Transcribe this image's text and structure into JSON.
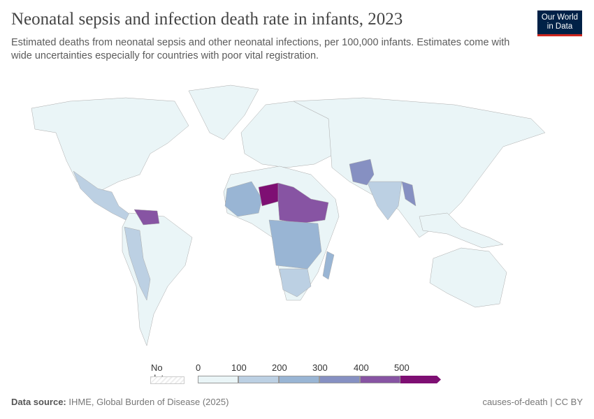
{
  "title": "Neonatal sepsis and infection death rate in infants, 2023",
  "subtitle": "Estimated deaths from neonatal sepsis and other neonatal infections, per 100,000 infants. Estimates come with wide uncertainties especially for countries with poor vital registration.",
  "logo": {
    "line1": "Our World",
    "line2": "in Data"
  },
  "legend": {
    "no_data": "No data",
    "ticks": [
      "0",
      "100",
      "200",
      "300",
      "400",
      "500"
    ],
    "colors": [
      "#eaf5f7",
      "#bcd0e3",
      "#99b5d4",
      "#8690c2",
      "#8754a3",
      "#7e0f73"
    ]
  },
  "footer": {
    "source_label": "Data source:",
    "source": "IHME, Global Burden of Disease (2025)",
    "right": "causes-of-death | CC BY"
  },
  "map": {
    "colors": {
      "lowest": "#eaf5f7",
      "100-200": "#bcd0e3",
      "200-300": "#99b5d4",
      "300-400": "#8690c2",
      "400-500": "#8754a3",
      "500+": "#7e0f73"
    }
  }
}
